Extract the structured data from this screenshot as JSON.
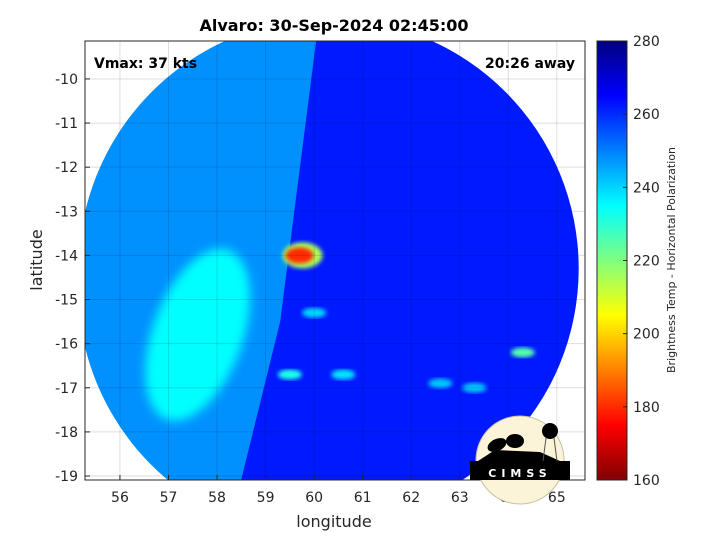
{
  "chart_data": {
    "type": "heatmap",
    "title": "Alvaro: 30-Sep-2024 02:45:00",
    "xlabel": "longitude",
    "ylabel": "latitude",
    "xlim": [
      55.28,
      65.58
    ],
    "ylim": [
      -19.09,
      -9.14
    ],
    "xticks": [
      56,
      57,
      58,
      59,
      60,
      61,
      62,
      63,
      64,
      65
    ],
    "yticks": [
      -10,
      -11,
      -12,
      -13,
      -14,
      -15,
      -16,
      -17,
      -18,
      -19
    ],
    "grid": true,
    "annotations": {
      "left": "Vmax: 37 kts",
      "right": "20:26 away"
    },
    "colorbar": {
      "label": "Brightness Temp - Horizontal Polarization",
      "range": [
        160,
        280
      ],
      "ticks": [
        160,
        180,
        200,
        220,
        240,
        260,
        280
      ],
      "colormap": "jet (reversed: low = dark red, high = dark blue)"
    },
    "swath": {
      "center_lon": 60.3,
      "center_lat": -14.3,
      "background_value": 262
    },
    "features": [
      {
        "lon": 59.7,
        "lat": -14.0,
        "value": 180,
        "label": "core"
      },
      {
        "lon": 60.0,
        "lat": -15.3,
        "value": 240
      },
      {
        "lon": 59.5,
        "lat": -16.7,
        "value": 232
      },
      {
        "lon": 60.6,
        "lat": -16.7,
        "value": 238
      },
      {
        "lon": 64.3,
        "lat": -16.2,
        "value": 225
      },
      {
        "lon": 62.6,
        "lat": -16.9,
        "value": 242
      },
      {
        "lon": 63.3,
        "lat": -17.0,
        "value": 242
      },
      {
        "lon": 57.5,
        "lat": -16.0,
        "value": 232,
        "label": "warm band"
      }
    ]
  },
  "logo": {
    "text": "CIMSS"
  },
  "colors": {
    "background_swath": "#1a4cf0",
    "core": "#c80000"
  }
}
